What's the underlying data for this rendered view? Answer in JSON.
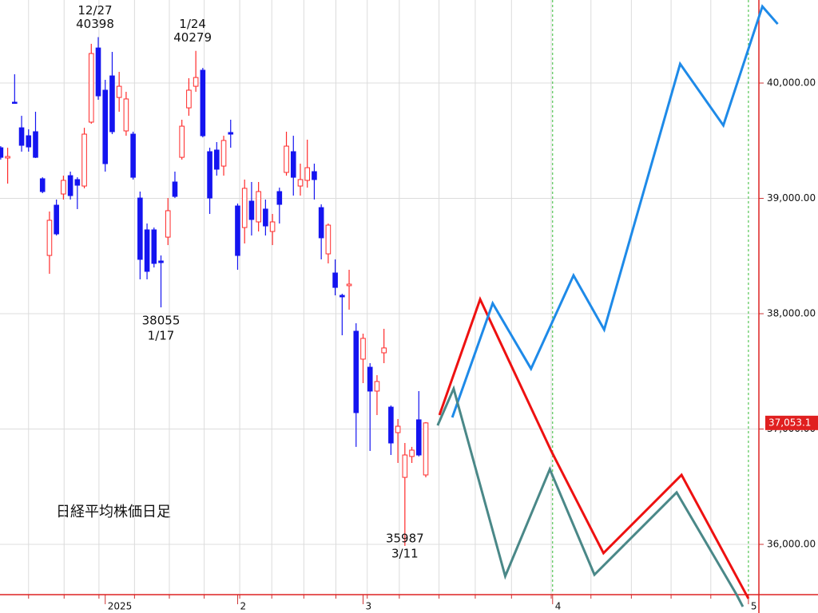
{
  "chart_data": {
    "type": "candlestick",
    "title": "日経平均株価日足",
    "open": [
      39439,
      39350,
      39834,
      39612,
      39543,
      39578,
      39170,
      38505,
      38941,
      39038,
      39197,
      39163,
      39107,
      39661,
      40304,
      39938,
      40062,
      39875,
      39585,
      39557,
      39003,
      38727,
      38727,
      38457,
      38664,
      39142,
      39356,
      39785,
      39972,
      40111,
      39405,
      39419,
      39280,
      39571,
      38934,
      38747,
      38976,
      38796,
      38907,
      38713,
      39059,
      39225,
      39405,
      39107,
      39156,
      39232,
      38920,
      38519,
      38353,
      38159,
      38243,
      37848,
      37606,
      37536,
      37329,
      37661,
      37190,
      36969,
      36581,
      36762,
      37080,
      36602
    ],
    "high": [
      39453,
      39439,
      40076,
      39716,
      39599,
      39751,
      39183,
      38886,
      38990,
      39197,
      39232,
      39183,
      39612,
      40340,
      40398,
      40028,
      40270,
      40097,
      39924,
      39578,
      39059,
      38782,
      38747,
      38505,
      39003,
      39232,
      39682,
      40042,
      40279,
      40131,
      39439,
      39488,
      39543,
      39682,
      38955,
      39163,
      39142,
      39142,
      38990,
      38865,
      39093,
      39578,
      39543,
      39301,
      39509,
      39301,
      38948,
      38782,
      38471,
      38173,
      38381,
      37917,
      37827,
      37571,
      37467,
      37869,
      37204,
      37087,
      36879,
      36845,
      37329,
      37060
    ],
    "low": [
      39336,
      39128,
      39820,
      39405,
      39405,
      39350,
      39045,
      38346,
      38678,
      38990,
      38990,
      38907,
      39087,
      39647,
      39855,
      39232,
      39557,
      39751,
      39543,
      39163,
      38298,
      38298,
      38401,
      38055,
      38595,
      39003,
      39336,
      39716,
      39924,
      39529,
      38865,
      39197,
      39197,
      39439,
      38381,
      38609,
      38678,
      38713,
      38678,
      38595,
      38782,
      39197,
      39024,
      39024,
      39093,
      38990,
      38471,
      38436,
      38159,
      37813,
      38035,
      36845,
      37398,
      36810,
      37121,
      37571,
      36775,
      36706,
      35987,
      36706,
      36762,
      36581
    ],
    "close": [
      39356,
      39363,
      39827,
      39460,
      39446,
      39356,
      39059,
      38810,
      38692,
      39156,
      39024,
      39114,
      39557,
      40256,
      39889,
      39301,
      39578,
      39972,
      39862,
      39183,
      38471,
      38367,
      38436,
      38443,
      38893,
      39017,
      39626,
      39938,
      40048,
      39543,
      39003,
      39253,
      39502,
      39557,
      38505,
      39087,
      38817,
      39059,
      38761,
      38796,
      38948,
      39453,
      39183,
      39163,
      39266,
      39163,
      38658,
      38768,
      38228,
      38146,
      38256,
      37142,
      37786,
      37329,
      37412,
      37703,
      36879,
      37024,
      36775,
      36817,
      36775,
      37053
    ],
    "up_color": "#ff2a2a",
    "down_color": "#1414f0",
    "series": [
      {
        "type": "line",
        "color": "#ee1111",
        "x": [
          62.96,
          68.8,
          79.0,
          86.5,
          97.7,
          107.3
        ],
        "values": [
          37121,
          38125,
          36810,
          35924,
          36602,
          35530
        ]
      },
      {
        "type": "line",
        "color": "#1e8ae8",
        "x": [
          64.8,
          70.6,
          76.1,
          82.2,
          86.6,
          97.5,
          103.7,
          109.3,
          111.5
        ],
        "values": [
          37100,
          38090,
          37523,
          38332,
          37862,
          40166,
          39633,
          40664,
          40512
        ]
      },
      {
        "type": "line",
        "color": "#4a8888",
        "x": [
          62.7,
          65.0,
          72.4,
          78.8,
          85.2,
          97.0,
          105.6,
          106.5
        ],
        "values": [
          37031,
          37350,
          35724,
          36651,
          35737,
          36450,
          35564,
          35460
        ]
      }
    ],
    "xlim": [
      -0.1,
      108.8
    ],
    "ylim": [
      35564,
      40720
    ],
    "xticks": [
      {
        "value": 15,
        "label": "2025"
      },
      {
        "value": 34,
        "label": "2"
      },
      {
        "value": 52,
        "label": "3"
      },
      {
        "value": 79.2,
        "label": "4"
      },
      {
        "value": 107.3,
        "label": "5"
      }
    ],
    "xgrid": [
      4.0,
      9.1,
      14.1,
      19.2,
      24.2,
      29.2,
      34.3,
      38.9,
      43.5,
      48.1,
      52.6,
      57.2,
      62.9,
      68.1,
      73.3,
      79.0,
      84.7,
      90.5,
      96.2,
      101.9
    ],
    "yticks": [
      {
        "value": 36000,
        "label": "36,000.00"
      },
      {
        "value": 37000,
        "label": "37,000.00"
      },
      {
        "value": 38000,
        "label": "38,000.00"
      },
      {
        "value": 39000,
        "label": "39,000.00"
      },
      {
        "value": 40000,
        "label": "40,000.00"
      }
    ],
    "grid": true,
    "annotations": [
      {
        "date": "12/27",
        "value": 40398,
        "side": "above"
      },
      {
        "date": "1/24",
        "value": 40279,
        "side": "above"
      },
      {
        "value": 38055,
        "date": "1/17",
        "side": "below"
      },
      {
        "value": 35987,
        "date": "3/11",
        "side": "below"
      }
    ],
    "last_price": {
      "value": 37053.1,
      "label": "37,053.1"
    }
  }
}
